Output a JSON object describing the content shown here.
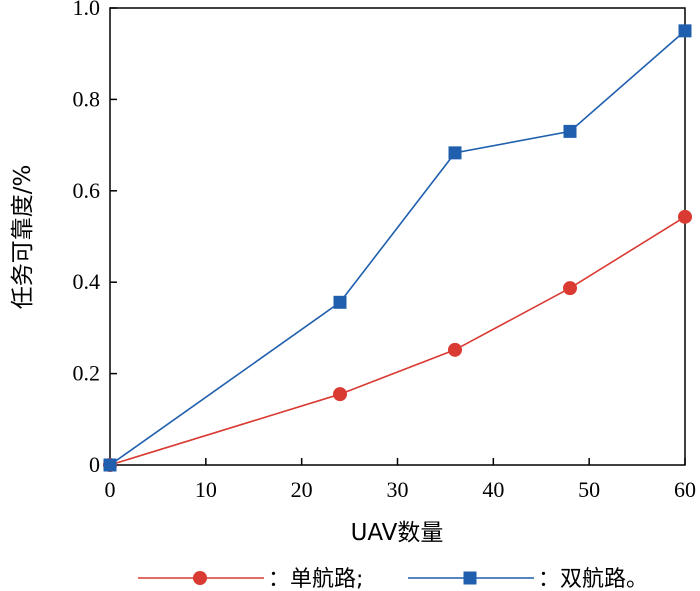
{
  "chart_data": {
    "type": "line",
    "xlabel": "UAV数量",
    "ylabel": "任务可靠度/%",
    "xlim": [
      0,
      60
    ],
    "ylim": [
      0,
      1.0
    ],
    "xticks": [
      0,
      10,
      20,
      30,
      40,
      50,
      60
    ],
    "yticks": [
      0,
      0.2,
      0.4,
      0.6,
      0.8,
      1.0
    ],
    "xtick_labels": [
      "0",
      "10",
      "20",
      "30",
      "40",
      "50",
      "60"
    ],
    "ytick_labels": [
      "0",
      "0.2",
      "0.4",
      "0.6",
      "0.8",
      "1.0"
    ],
    "grid": false,
    "legend_position": "bottom",
    "series": [
      {
        "name": "：单航路;",
        "color": "#d93a32",
        "marker": "circle",
        "x": [
          0,
          24,
          36,
          48,
          60
        ],
        "y": [
          0,
          0.155,
          0.252,
          0.387,
          0.543
        ]
      },
      {
        "name": "：双航路。",
        "color": "#1f5fae",
        "marker": "square",
        "x": [
          0,
          24,
          36,
          48,
          60
        ],
        "y": [
          0,
          0.356,
          0.683,
          0.73,
          0.95
        ]
      }
    ]
  }
}
